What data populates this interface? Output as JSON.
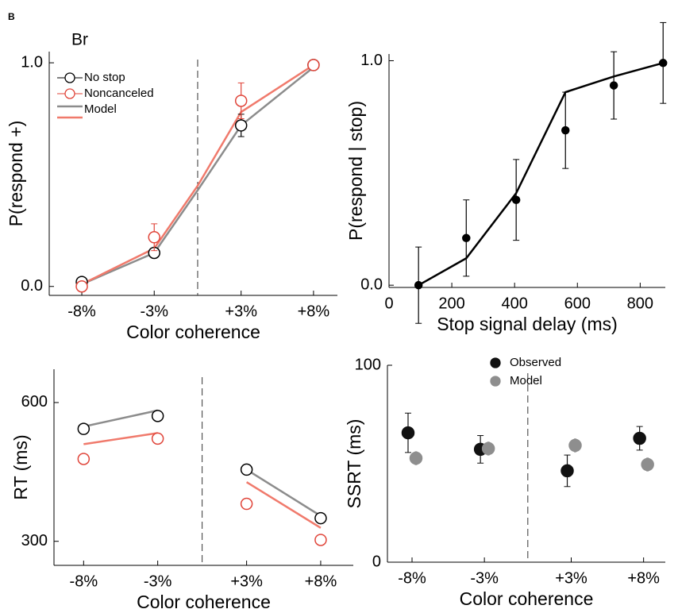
{
  "panel_label": "B",
  "chart_data": [
    {
      "type": "line",
      "title": "Br",
      "xlabel": "Color coherence",
      "ylabel": "P(respond +)",
      "xlim": [
        -10.25,
        9.65
      ],
      "ylim": [
        -0.04,
        1.05
      ],
      "xticks": [
        {
          "value": -8,
          "label": "-8%"
        },
        {
          "value": -3,
          "label": "-3%"
        },
        {
          "value": 3,
          "label": "+3%"
        },
        {
          "value": 8,
          "label": "+8%"
        }
      ],
      "yticks": [
        {
          "value": 0,
          "label": "0.0"
        },
        {
          "value": 1,
          "label": "1.0"
        }
      ],
      "vline": 0,
      "legend": "upper left",
      "series": [
        {
          "name": "Model",
          "color": "#8c8c8c",
          "style": "line",
          "x": [
            -8,
            -3,
            0,
            3,
            8
          ],
          "values": [
            0.01,
            0.15,
            0.43,
            0.72,
            0.98
          ]
        },
        {
          "color": "#f07a6c",
          "style": "line",
          "x": [
            -8,
            -3,
            0,
            3,
            8
          ],
          "values": [
            0.01,
            0.17,
            0.45,
            0.78,
            0.99
          ]
        },
        {
          "name": "No stop",
          "color": "#000000",
          "style": "markers",
          "marker": "open",
          "x": [
            -8,
            -3,
            3,
            8
          ],
          "values": [
            0.02,
            0.15,
            0.72,
            0.99
          ],
          "errors": [
            null,
            null,
            0.05,
            null
          ]
        },
        {
          "name": "Noncanceled",
          "color": "#e0453a",
          "style": "markers",
          "marker": "open",
          "x": [
            -8,
            -3,
            3,
            8
          ],
          "values": [
            0.0,
            0.22,
            0.83,
            0.99
          ],
          "errors": [
            null,
            0.06,
            0.08,
            null
          ]
        }
      ]
    },
    {
      "type": "line",
      "xlabel": "Stop signal delay (ms)",
      "ylabel": "P(respond | stop)",
      "xlim": [
        0,
        880
      ],
      "ylim": [
        -0.01,
        1.03
      ],
      "xticks": [
        0,
        200,
        400,
        600,
        800
      ],
      "yticks": [
        {
          "value": 0,
          "label": "0.0"
        },
        {
          "value": 1,
          "label": "1.0"
        }
      ],
      "series": [
        {
          "color": "#000000",
          "style": "line",
          "x": [
            94,
            246,
            405,
            562,
            716,
            873
          ],
          "values": [
            0.0,
            0.12,
            0.41,
            0.86,
            0.93,
            0.99
          ]
        },
        {
          "color": "#000000",
          "style": "markers",
          "marker": "filled",
          "x": [
            94,
            246,
            405,
            562,
            716,
            873
          ],
          "values": [
            0.0,
            0.21,
            0.38,
            0.69,
            0.89,
            0.99
          ],
          "errors": [
            0.17,
            0.17,
            0.18,
            0.17,
            0.15,
            0.18
          ]
        }
      ]
    },
    {
      "type": "line",
      "xlabel": "Color coherence",
      "ylabel": "RT (ms)",
      "xlim": [
        -10,
        10.2
      ],
      "ylim": [
        248,
        672
      ],
      "xticks": [
        {
          "value": -8,
          "label": "-8%"
        },
        {
          "value": -3,
          "label": "-3%"
        },
        {
          "value": 3,
          "label": "+3%"
        },
        {
          "value": 8,
          "label": "+8%"
        }
      ],
      "yticks": [
        300,
        600
      ],
      "vline": 0,
      "series": [
        {
          "color": "#8c8c8c",
          "style": "line",
          "x": [
            -8,
            -3,
            0,
            3,
            8
          ],
          "values": [
            548,
            583,
            null,
            455,
            355
          ]
        },
        {
          "color": "#f07a6c",
          "style": "line",
          "x": [
            -8,
            -3,
            0,
            3,
            8
          ],
          "values": [
            510,
            534,
            null,
            428,
            329
          ]
        },
        {
          "color": "#000000",
          "style": "markers",
          "marker": "open",
          "x": [
            -8,
            -3,
            3,
            8
          ],
          "values": [
            543,
            571,
            455,
            350
          ]
        },
        {
          "color": "#e0453a",
          "style": "markers",
          "marker": "open",
          "x": [
            -8,
            -3,
            3,
            8
          ],
          "values": [
            478,
            522,
            381,
            303
          ]
        }
      ]
    },
    {
      "type": "scatter",
      "xlabel": "Color coherence",
      "ylabel": "SSRT (ms)",
      "xlim": [
        -9.7,
        9.5
      ],
      "ylim": [
        0,
        100
      ],
      "xticks": [
        {
          "value": -8,
          "label": "-8%"
        },
        {
          "value": -3,
          "label": "-3%"
        },
        {
          "value": 3,
          "label": "+3%"
        },
        {
          "value": 8,
          "label": "+8%"
        }
      ],
      "yticks": [
        0,
        100
      ],
      "vline": 0,
      "legend": "upper center",
      "series": [
        {
          "name": "Observed",
          "color": "#111111",
          "style": "markers",
          "marker": "filled",
          "x": [
            -8,
            -3,
            3,
            8
          ],
          "values": [
            65.7,
            57.3,
            46.4,
            62.9
          ],
          "errors": [
            10,
            7,
            8,
            6
          ]
        },
        {
          "name": "Model",
          "color": "#8e8e8e",
          "style": "markers",
          "marker": "filled",
          "x": [
            -8,
            -3,
            3,
            8
          ],
          "values": [
            52.8,
            57.7,
            59.3,
            49.6
          ],
          "errors": [
            3.5,
            3.5,
            3.5,
            3.5
          ]
        }
      ]
    }
  ]
}
